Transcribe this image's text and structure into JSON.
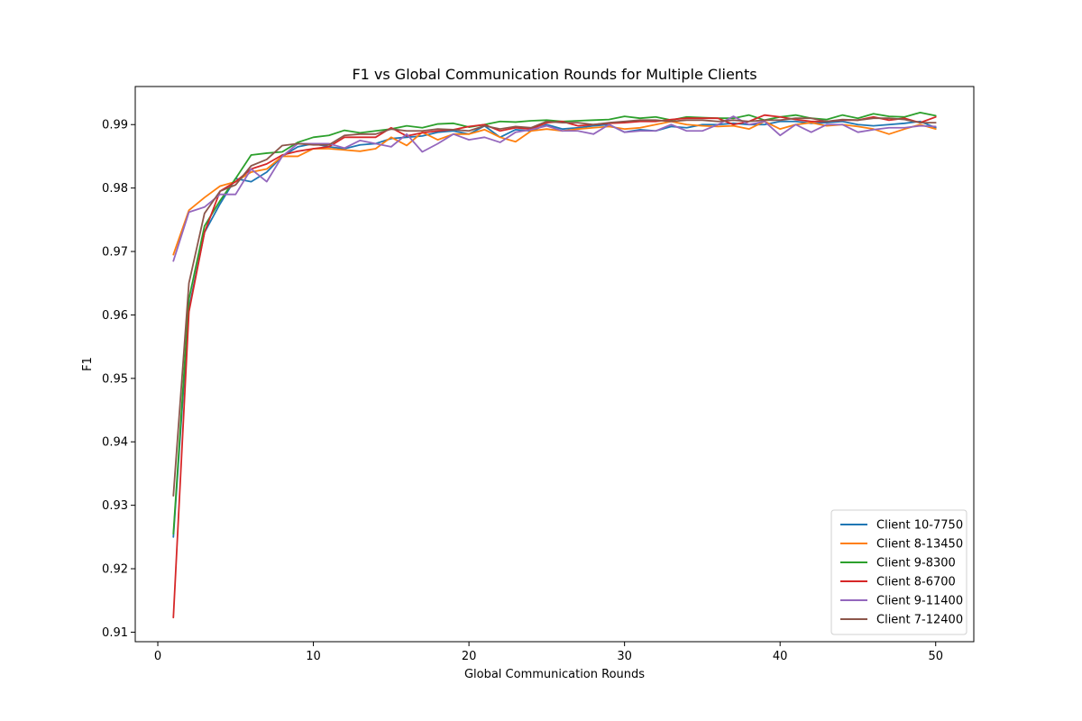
{
  "chart_data": {
    "type": "line",
    "title": "F1 vs Global Communication Rounds for Multiple Clients",
    "xlabel": "Global Communication Rounds",
    "ylabel": "F1",
    "xlim": [
      -1.45,
      52.45
    ],
    "ylim": [
      0.9085,
      0.996
    ],
    "xticks": [
      0,
      10,
      20,
      30,
      40,
      50
    ],
    "yticks": [
      0.91,
      0.92,
      0.93,
      0.94,
      0.95,
      0.96,
      0.97,
      0.98,
      0.99
    ],
    "x": [
      1,
      2,
      3,
      4,
      5,
      6,
      7,
      8,
      9,
      10,
      11,
      12,
      13,
      14,
      15,
      16,
      17,
      18,
      19,
      20,
      21,
      22,
      23,
      24,
      25,
      26,
      27,
      28,
      29,
      30,
      31,
      32,
      33,
      34,
      35,
      36,
      37,
      38,
      39,
      40,
      41,
      42,
      43,
      44,
      45,
      46,
      47,
      48,
      49,
      50
    ],
    "legend_position": "lower right",
    "grid": false,
    "series": [
      {
        "name": "Client 10-7750",
        "color": "#1f77b4",
        "values": [
          0.925,
          0.961,
          0.973,
          0.9775,
          0.9815,
          0.981,
          0.9825,
          0.985,
          0.9865,
          0.987,
          0.9865,
          0.9862,
          0.9868,
          0.987,
          0.9878,
          0.988,
          0.9882,
          0.9888,
          0.989,
          0.9885,
          0.9898,
          0.988,
          0.9892,
          0.989,
          0.99,
          0.9893,
          0.9895,
          0.9898,
          0.99,
          0.9888,
          0.9892,
          0.989,
          0.9897,
          0.9895,
          0.99,
          0.99,
          0.9902,
          0.99,
          0.99,
          0.9905,
          0.9905,
          0.9902,
          0.9903,
          0.9905,
          0.99,
          0.9898,
          0.99,
          0.9902,
          0.9905,
          0.9895
        ]
      },
      {
        "name": "Client 8-13450",
        "color": "#ff7f0e",
        "values": [
          0.9695,
          0.9765,
          0.9785,
          0.9803,
          0.981,
          0.9825,
          0.983,
          0.985,
          0.985,
          0.9862,
          0.9862,
          0.986,
          0.9858,
          0.9862,
          0.988,
          0.9867,
          0.9888,
          0.9876,
          0.9885,
          0.9885,
          0.9892,
          0.988,
          0.9873,
          0.989,
          0.9893,
          0.989,
          0.9893,
          0.9895,
          0.9897,
          0.9893,
          0.9895,
          0.99,
          0.9905,
          0.99,
          0.9898,
          0.9897,
          0.9898,
          0.9893,
          0.9905,
          0.9893,
          0.99,
          0.9903,
          0.9898,
          0.99,
          0.9897,
          0.9893,
          0.9885,
          0.9893,
          0.99,
          0.9893
        ]
      },
      {
        "name": "Client 9-8300",
        "color": "#2ca02c",
        "values": [
          0.9255,
          0.9625,
          0.974,
          0.978,
          0.9815,
          0.9852,
          0.9855,
          0.9857,
          0.9872,
          0.988,
          0.9883,
          0.9891,
          0.9887,
          0.989,
          0.9893,
          0.9898,
          0.9895,
          0.9901,
          0.9902,
          0.9896,
          0.99,
          0.9905,
          0.9904,
          0.9906,
          0.9907,
          0.9905,
          0.9906,
          0.9907,
          0.9908,
          0.9913,
          0.991,
          0.9912,
          0.9907,
          0.9912,
          0.9911,
          0.991,
          0.991,
          0.9915,
          0.9907,
          0.9912,
          0.9915,
          0.991,
          0.9908,
          0.9915,
          0.991,
          0.9917,
          0.9913,
          0.9912,
          0.9919,
          0.9914
        ]
      },
      {
        "name": "Client 8-6700",
        "color": "#d62728",
        "values": [
          0.9123,
          0.9605,
          0.973,
          0.9795,
          0.981,
          0.983,
          0.9838,
          0.9852,
          0.9858,
          0.9862,
          0.9865,
          0.988,
          0.988,
          0.988,
          0.9895,
          0.9882,
          0.9887,
          0.989,
          0.9892,
          0.9897,
          0.99,
          0.989,
          0.9895,
          0.9893,
          0.9903,
          0.9905,
          0.9898,
          0.99,
          0.9902,
          0.9903,
          0.9905,
          0.9905,
          0.9908,
          0.991,
          0.991,
          0.991,
          0.99,
          0.9905,
          0.9915,
          0.9912,
          0.9908,
          0.9905,
          0.9905,
          0.9907,
          0.9907,
          0.9912,
          0.9907,
          0.991,
          0.9903,
          0.9912
        ]
      },
      {
        "name": "Client 9-11400",
        "color": "#9467bd",
        "values": [
          0.9685,
          0.9762,
          0.977,
          0.979,
          0.979,
          0.983,
          0.981,
          0.985,
          0.987,
          0.987,
          0.987,
          0.9863,
          0.9875,
          0.987,
          0.9865,
          0.9885,
          0.9857,
          0.987,
          0.9885,
          0.9876,
          0.988,
          0.9872,
          0.9888,
          0.9892,
          0.9898,
          0.989,
          0.989,
          0.9885,
          0.99,
          0.9888,
          0.989,
          0.989,
          0.99,
          0.989,
          0.989,
          0.99,
          0.9913,
          0.99,
          0.9905,
          0.9883,
          0.99,
          0.9888,
          0.99,
          0.99,
          0.9888,
          0.9892,
          0.9895,
          0.9895,
          0.9898,
          0.9897
        ]
      },
      {
        "name": "Client 7-12400",
        "color": "#8c564b",
        "values": [
          0.9315,
          0.965,
          0.976,
          0.9795,
          0.9805,
          0.9835,
          0.9845,
          0.9867,
          0.987,
          0.9868,
          0.9868,
          0.9883,
          0.9885,
          0.9885,
          0.9893,
          0.989,
          0.989,
          0.9893,
          0.9892,
          0.989,
          0.9898,
          0.9893,
          0.9897,
          0.9895,
          0.9905,
          0.9903,
          0.9903,
          0.99,
          0.9903,
          0.9905,
          0.9907,
          0.9907,
          0.9905,
          0.9907,
          0.9907,
          0.9905,
          0.9907,
          0.9905,
          0.9907,
          0.9907,
          0.991,
          0.991,
          0.9905,
          0.9908,
          0.9907,
          0.991,
          0.991,
          0.9908,
          0.9903,
          0.9903
        ]
      }
    ]
  }
}
